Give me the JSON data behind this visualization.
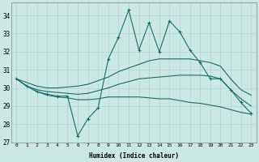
{
  "xlabel": "Humidex (Indice chaleur)",
  "bg_color": "#cce8e4",
  "grid_color": "#aacccc",
  "line_color": "#1a6e6a",
  "xlim": [
    -0.5,
    23.5
  ],
  "ylim": [
    27,
    34.7
  ],
  "xticks": [
    0,
    1,
    2,
    3,
    4,
    5,
    6,
    7,
    8,
    9,
    10,
    11,
    12,
    13,
    14,
    15,
    16,
    17,
    18,
    19,
    20,
    21,
    22,
    23
  ],
  "yticks": [
    27,
    28,
    29,
    30,
    31,
    32,
    33,
    34
  ],
  "series": {
    "jagged": [
      30.5,
      30.1,
      29.8,
      29.65,
      29.55,
      29.55,
      27.35,
      28.3,
      28.9,
      31.6,
      32.8,
      34.3,
      32.1,
      33.6,
      32.0,
      33.7,
      33.1,
      32.1,
      31.4,
      30.5,
      30.5,
      29.9,
      29.2,
      28.6
    ],
    "upper": [
      30.5,
      30.3,
      30.1,
      30.0,
      30.0,
      30.05,
      30.1,
      30.2,
      30.4,
      30.6,
      30.9,
      31.1,
      31.3,
      31.5,
      31.6,
      31.6,
      31.6,
      31.6,
      31.5,
      31.4,
      31.2,
      30.5,
      29.9,
      29.6
    ],
    "middle": [
      30.5,
      30.1,
      29.9,
      29.8,
      29.75,
      29.7,
      29.65,
      29.7,
      29.85,
      30.0,
      30.2,
      30.35,
      30.5,
      30.55,
      30.6,
      30.65,
      30.7,
      30.7,
      30.7,
      30.65,
      30.5,
      29.9,
      29.4,
      29.0
    ],
    "lower": [
      30.5,
      30.1,
      29.8,
      29.6,
      29.5,
      29.45,
      29.35,
      29.35,
      29.4,
      29.5,
      29.5,
      29.5,
      29.5,
      29.45,
      29.4,
      29.4,
      29.3,
      29.2,
      29.15,
      29.05,
      28.95,
      28.8,
      28.65,
      28.55
    ]
  }
}
